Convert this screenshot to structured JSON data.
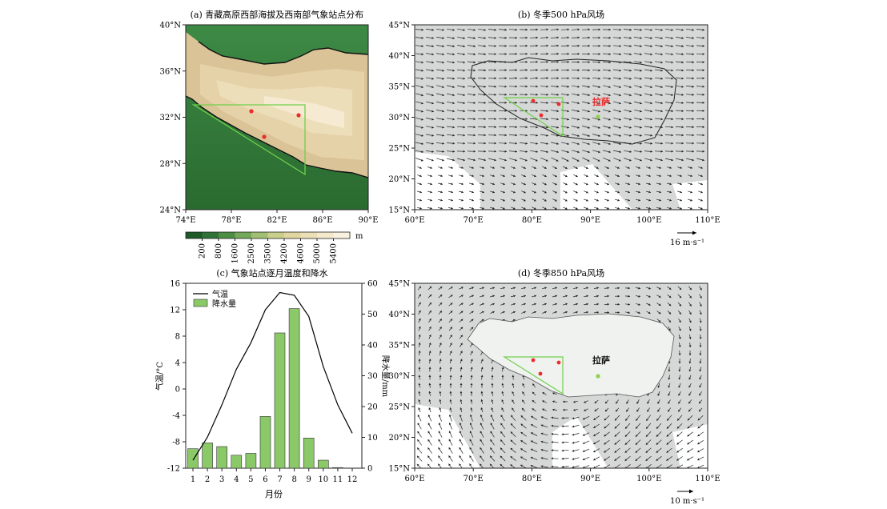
{
  "panels": {
    "a": {
      "title": "(a) 青藏高原西部海拔及西南部气象站点分布",
      "lat_labels": [
        "40°N",
        "36°N",
        "32°N",
        "28°N",
        "24°N"
      ],
      "lon_labels": [
        "74°E",
        "78°E",
        "82°E",
        "86°E",
        "90°E"
      ],
      "colorbar": {
        "unit": "m",
        "ticks": [
          "200",
          "800",
          "1600",
          "2500",
          "3500",
          "4200",
          "4600",
          "5000",
          "5400"
        ],
        "colors": [
          "#1d5a26",
          "#2f7436",
          "#4d8e45",
          "#74a85a",
          "#a0bf72",
          "#c9cf8a",
          "#e1d6a0",
          "#ecdfb8",
          "#f4e9cc",
          "#faf2e0"
        ]
      }
    },
    "b": {
      "title": "(b) 冬季500 hPa风场",
      "lat_labels": [
        "45°N",
        "40°N",
        "35°N",
        "30°N",
        "25°N",
        "20°N",
        "15°N"
      ],
      "lon_labels": [
        "60°E",
        "70°E",
        "80°E",
        "90°E",
        "100°E",
        "110°E"
      ],
      "city_label": "拉萨",
      "ref_vector_label": "16 m·s⁻¹"
    },
    "c": {
      "title": "(c) 气象站点逐月温度和降水",
      "legend_temp": "气温",
      "legend_precip": "降水量",
      "ylabel_left": "气温/°C",
      "ylabel_right": "降水量/mm",
      "xlabel": "月份",
      "left_ticks": [
        "16",
        "12",
        "8",
        "4",
        "0",
        "-4",
        "-8",
        "-12"
      ],
      "right_ticks": [
        "60",
        "50",
        "40",
        "30",
        "20",
        "10",
        "0"
      ],
      "month_ticks": [
        "1",
        "2",
        "3",
        "4",
        "5",
        "6",
        "7",
        "8",
        "9",
        "10",
        "11",
        "12"
      ]
    },
    "d": {
      "title": "(d) 冬季850 hPa风场",
      "lat_labels": [
        "45°N",
        "40°N",
        "35°N",
        "30°N",
        "25°N",
        "20°N",
        "15°N"
      ],
      "lon_labels": [
        "60°E",
        "70°E",
        "80°E",
        "90°E",
        "100°E",
        "110°E"
      ],
      "city_label": "拉萨",
      "ref_vector_label": "10 m·s⁻¹"
    }
  },
  "chart_data": {
    "type": "bar",
    "categories": [
      "1",
      "2",
      "3",
      "4",
      "5",
      "6",
      "7",
      "8",
      "9",
      "10",
      "11",
      "12"
    ],
    "series": [
      {
        "name": "降水量",
        "type": "bar",
        "axis": "right",
        "color": "#8bc868",
        "values": [
          6.3,
          8.2,
          7.0,
          4.2,
          4.8,
          16.8,
          43.9,
          51.8,
          9.8,
          2.6,
          0.2,
          0.0
        ]
      },
      {
        "name": "气温",
        "type": "line",
        "axis": "left",
        "color": "#000000",
        "values": [
          -10.8,
          -7.3,
          -2.4,
          3.0,
          7.0,
          12.0,
          14.6,
          14.2,
          11.0,
          3.4,
          -2.4,
          -6.7
        ]
      }
    ],
    "xlabel": "月份",
    "ylabel": "气温/°C",
    "y2label": "降水量/mm",
    "ylim": [
      -12,
      16
    ],
    "y2lim": [
      0,
      60
    ],
    "legend": "top-left"
  }
}
